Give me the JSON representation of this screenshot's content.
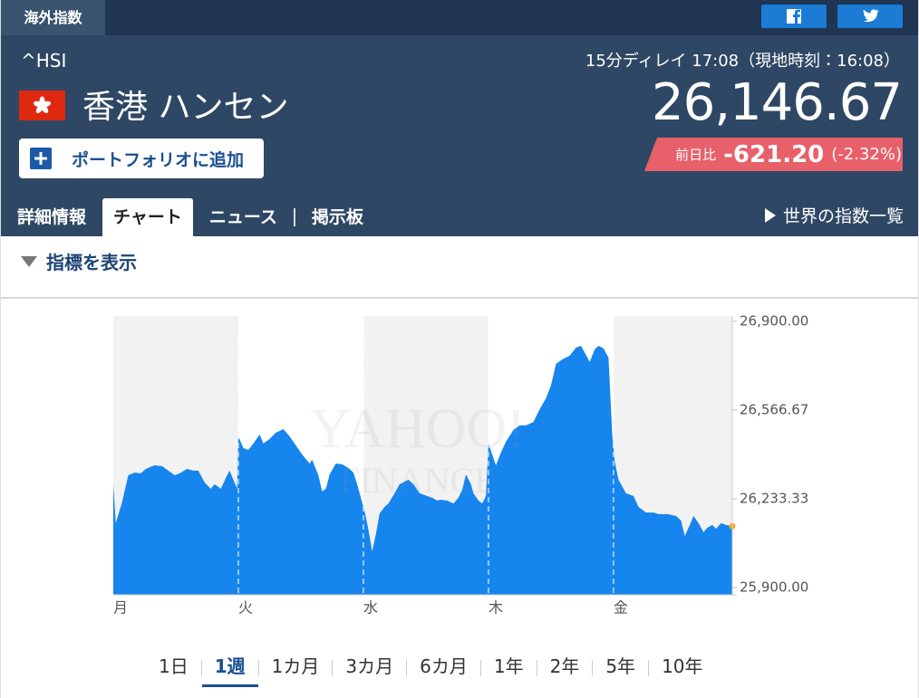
{
  "header": {
    "tab": "海外指数",
    "symbol": "^HSI",
    "name": "香港 ハンセン",
    "delay": "15分ディレイ 17:08（現地時刻：16:08）",
    "price": "26,146.67",
    "change_label": "前日比",
    "change": "-621.20",
    "change_pct": "(-2.32%)",
    "portfolio_button": "ポートフォリオに追加"
  },
  "nav": {
    "items": [
      "詳細情報",
      "チャート",
      "ニュース",
      "掲示板"
    ],
    "active": 1,
    "world_link": "世界の指数一覧"
  },
  "indicator_toggle": "指標を表示",
  "chart_data": {
    "type": "area",
    "color": "#1685ee",
    "marker_color": "#f5a623",
    "watermark": [
      "YAHOO!",
      "FINANCE"
    ],
    "x": [
      0.0,
      0.02,
      0.07,
      0.12,
      0.17,
      0.22,
      0.26,
      0.33,
      0.39,
      0.44,
      0.49,
      0.53,
      0.59,
      0.64,
      0.68,
      0.73,
      0.78,
      0.81,
      0.86,
      0.9,
      0.93,
      0.96,
      0.99,
      1.0,
      1.04,
      1.08,
      1.12,
      1.17,
      1.2,
      1.25,
      1.3,
      1.36,
      1.41,
      1.46,
      1.51,
      1.57,
      1.59,
      1.64,
      1.67,
      1.7,
      1.73,
      1.78,
      1.83,
      1.88,
      1.92,
      1.95,
      1.99,
      2.01,
      2.04,
      2.07,
      2.1,
      2.13,
      2.17,
      2.2,
      2.24,
      2.29,
      2.33,
      2.36,
      2.4,
      2.45,
      2.51,
      2.55,
      2.59,
      2.62,
      2.67,
      2.72,
      2.76,
      2.79,
      2.82,
      2.86,
      2.88,
      2.92,
      2.95,
      2.98,
      3.0,
      3.03,
      3.06,
      3.1,
      3.14,
      3.2,
      3.25,
      3.3,
      3.36,
      3.41,
      3.46,
      3.5,
      3.54,
      3.59,
      3.65,
      3.7,
      3.74,
      3.78,
      3.81,
      3.85,
      3.88,
      3.92,
      3.96,
      3.99,
      4.01,
      4.04,
      4.1,
      4.16,
      4.2,
      4.26,
      4.32,
      4.36,
      4.43,
      4.5,
      4.54,
      4.57,
      4.61,
      4.64,
      4.68,
      4.72,
      4.75,
      4.79,
      4.82,
      4.86,
      4.9,
      4.95
    ],
    "values": [
      26288,
      26142,
      26220,
      26322,
      26332,
      26329,
      26346,
      26359,
      26356,
      26339,
      26322,
      26329,
      26346,
      26339,
      26339,
      26295,
      26271,
      26288,
      26271,
      26312,
      26339,
      26305,
      26271,
      26468,
      26424,
      26417,
      26441,
      26475,
      26441,
      26458,
      26482,
      26495,
      26468,
      26434,
      26400,
      26366,
      26380,
      26322,
      26261,
      26271,
      26325,
      26366,
      26363,
      26349,
      26332,
      26288,
      26220,
      26186,
      26118,
      26036,
      26101,
      26179,
      26203,
      26216,
      26247,
      26288,
      26298,
      26305,
      26288,
      26254,
      26244,
      26237,
      26227,
      26230,
      26227,
      26216,
      26237,
      26267,
      26325,
      26288,
      26254,
      26227,
      26216,
      26244,
      26441,
      26400,
      26359,
      26407,
      26448,
      26492,
      26509,
      26509,
      26522,
      26570,
      26611,
      26659,
      26740,
      26757,
      26771,
      26801,
      26808,
      26774,
      26747,
      26795,
      26808,
      26798,
      26764,
      26475,
      26373,
      26305,
      26254,
      26244,
      26203,
      26182,
      26182,
      26176,
      26176,
      26169,
      26152,
      26094,
      26135,
      26169,
      26142,
      26108,
      26125,
      26135,
      26121,
      26142,
      26135,
      26131
    ],
    "xlim": [
      0,
      4.95
    ],
    "xticks": [
      {
        "value": 0,
        "label": "月"
      },
      {
        "value": 1,
        "label": "火"
      },
      {
        "value": 2,
        "label": "水"
      },
      {
        "value": 3,
        "label": "木"
      },
      {
        "value": 4,
        "label": "金"
      }
    ],
    "ylim": [
      25873,
      26920
    ],
    "yticks": [
      {
        "value": 25900,
        "label": "25,900.00"
      },
      {
        "value": 26233.33,
        "label": "26,233.33"
      },
      {
        "value": 26566.67,
        "label": "26,566.67"
      },
      {
        "value": 26900,
        "label": "26,900.00"
      }
    ],
    "grid": false
  },
  "periods": {
    "items": [
      "1日",
      "1週",
      "1カ月",
      "3カ月",
      "6カ月",
      "1年",
      "2年",
      "5年",
      "10年"
    ],
    "active": 1
  }
}
